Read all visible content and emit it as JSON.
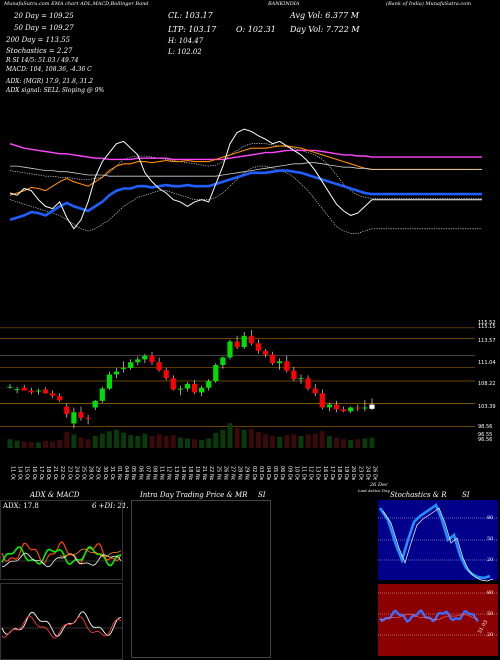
{
  "header": {
    "line1_left": "MunafaSutra.com  EMA chart ADL,MACD,Bollinger Band",
    "stock": "BANKINDIA",
    "company": "(Bank of India) MunafaSutra.com",
    "ema20": "20 Day = 109.25",
    "ema50": "50 Day = 109.27",
    "ema200": "200 Day = 113.55",
    "stochastics": "Stochastics = 2.27",
    "rsi_line": "R SI 14/5: 51.03 / 49.74",
    "macd": "MACD: 104, 108.36, -4.36 C",
    "cl": "CL: 103.17",
    "ltp": "LTP: 103.17",
    "open": "O: 102.31",
    "high": "H: 104.47",
    "low": "L: 102.02",
    "avg_vol": "Avg Vol: 6.377 M",
    "day_vol": "Day Vol: 7.722 M",
    "adx_line": "ADX: (MGR) 17.9, 21.8, 31.2",
    "adx_signal": "ADX signal: SELL Sloping @ 9%"
  },
  "price_levels": [
    "115.52",
    "115.15",
    "113.57",
    "111.04",
    "108.22",
    "103.39",
    "98.56",
    "96.55",
    "96.56"
  ],
  "dates": [
    "11 Oct",
    "14 Oct",
    "15 Oct",
    "16 Oct",
    "17 Oct",
    "18 Oct",
    "21 Oct",
    "22 Oct",
    "23 Oct",
    "24 Oct",
    "25 Oct",
    "28 Oct",
    "29 Oct",
    "30 Oct",
    "31 Oct",
    "01 Nov",
    "04 Nov",
    "05 Nov",
    "06 Nov",
    "07 Nov",
    "08 Nov",
    "11 Nov",
    "12 Nov",
    "13 Nov",
    "14 Nov",
    "18 Nov",
    "19 Nov",
    "21 Nov",
    "22 Nov",
    "25 Nov",
    "26 Nov",
    "27 Nov",
    "28 Nov",
    "29 Nov",
    "02 Dec",
    "03 Dec",
    "04 Dec",
    "05 Dec",
    "06 Dec",
    "09 Dec",
    "10 Dec",
    "11 Dec",
    "12 Dec",
    "13 Dec",
    "16 Dec",
    "17 Dec",
    "18 Dec",
    "19 Dec",
    "20 Dec",
    "23 Dec",
    "24 Dec",
    "26 Dec"
  ],
  "date_footer": "26 Dec",
  "date_footer2": "Last Active Day",
  "panels": {
    "adx_title": "ADX & MACD",
    "adx_value": "ADX: 17.8",
    "adx_extra": "6 +DI: 21.",
    "intraday_title": "Intra Day Trading Price & MR",
    "intraday_si": "SI",
    "stoch_title": "Stochastics & R",
    "stoch_si": "SI",
    "stoch_levels": [
      "80",
      "50",
      "20"
    ],
    "rsi_levels": [
      "80",
      "50",
      "20"
    ],
    "rsi_value": "51.03"
  },
  "colors": {
    "bull": "#00dd00",
    "bear": "#ff0000",
    "ema20": "#ffffff",
    "ema50": "#ff8c00",
    "ema200": "#ff44ff",
    "bb": "#1f5fff",
    "stoch_bg": "#00008b",
    "rsi_bg": "#8b0000"
  },
  "chart_data": {
    "type": "candlestick",
    "ylim": [
      94,
      122
    ],
    "ohlc": [
      [
        107,
        107.6,
        106.6,
        107
      ],
      [
        106.3,
        107,
        105.6,
        106.5
      ],
      [
        106.8,
        107.4,
        106.2,
        106.2
      ],
      [
        106.2,
        106.8,
        105.4,
        105.8
      ],
      [
        106,
        106.6,
        105.3,
        106.2
      ],
      [
        106.4,
        106.9,
        105.5,
        105.6
      ],
      [
        105.6,
        106.2,
        104.6,
        105.1
      ],
      [
        105,
        105.6,
        103.8,
        104.1
      ],
      [
        102.8,
        103.5,
        100.4,
        101.2
      ],
      [
        99.2,
        102.6,
        98.2,
        101.6
      ],
      [
        101.6,
        102.8,
        99.8,
        100.4
      ],
      [
        100.4,
        101,
        99,
        100.2
      ],
      [
        102.6,
        104.2,
        102,
        104
      ],
      [
        104,
        107,
        103.6,
        106.6
      ],
      [
        106.6,
        110.2,
        106.3,
        109.6
      ],
      [
        109.6,
        111,
        108.8,
        110.2
      ],
      [
        110.8,
        112.4,
        110,
        111
      ],
      [
        111,
        112.8,
        110.6,
        112.2
      ],
      [
        112.2,
        113.4,
        111.6,
        112.8
      ],
      [
        112.8,
        114,
        112,
        113.6
      ],
      [
        113.6,
        114.4,
        111.6,
        112.2
      ],
      [
        112.2,
        113.2,
        110.2,
        110.5
      ],
      [
        110.5,
        111,
        108.4,
        108.8
      ],
      [
        108.8,
        109.4,
        106.2,
        106.4
      ],
      [
        106.4,
        107.2,
        105.2,
        106.6
      ],
      [
        106.6,
        108,
        106,
        107.6
      ],
      [
        107.6,
        108.4,
        105.4,
        105.8
      ],
      [
        105.8,
        107.2,
        105,
        106.8
      ],
      [
        106.8,
        108.6,
        106.2,
        108.2
      ],
      [
        108.2,
        112,
        107.8,
        111.6
      ],
      [
        111.6,
        113.4,
        110.8,
        113.2
      ],
      [
        113.2,
        117,
        112.8,
        116.6
      ],
      [
        116.6,
        117.8,
        115,
        115.4
      ],
      [
        115.4,
        118.6,
        115,
        117.8
      ],
      [
        117.8,
        119,
        115.8,
        116.2
      ],
      [
        116.2,
        117,
        114,
        114.6
      ],
      [
        114.6,
        115,
        113.2,
        113.8
      ],
      [
        113.8,
        114.4,
        111.6,
        112
      ],
      [
        112,
        113,
        110.6,
        112.4
      ],
      [
        112.4,
        113.6,
        110,
        110.4
      ],
      [
        110.4,
        111.2,
        108.2,
        108.6
      ],
      [
        108.6,
        109.6,
        107.6,
        108.8
      ],
      [
        108.8,
        109.4,
        106.2,
        106.6
      ],
      [
        106.6,
        107.6,
        105,
        105.6
      ],
      [
        105.6,
        106.4,
        102.2,
        102.6
      ],
      [
        102.6,
        103.6,
        101.8,
        103.2
      ],
      [
        103.2,
        104,
        101.6,
        102.2
      ],
      [
        102.2,
        102.8,
        101.6,
        101.8
      ],
      [
        101.8,
        102.8,
        101.4,
        102.6
      ],
      [
        102.6,
        103.2,
        101.8,
        102.4
      ],
      [
        102.4,
        104.2,
        101.8,
        102.6
      ],
      [
        102.3,
        104.5,
        102,
        103.2
      ]
    ],
    "ema_panel": {
      "ema20": [
        0.3,
        0.34,
        0.4,
        0.5,
        0.42,
        0.33,
        0.44,
        0.55,
        0.62,
        0.48,
        0.38,
        0.3,
        0.42,
        0.56,
        0.68,
        0.8,
        0.82,
        0.72,
        0.8,
        0.7,
        0.64,
        0.68,
        0.72,
        0.66,
        0.6,
        0.62,
        0.58,
        0.56,
        0.52,
        0.62,
        0.72,
        0.82,
        0.84,
        0.86,
        0.88,
        0.86,
        0.82,
        0.8,
        0.84,
        0.8,
        0.74,
        0.62,
        0.56,
        0.52,
        0.5,
        0.42,
        0.45,
        0.35,
        0.3,
        0.32,
        0.38,
        0.46
      ],
      "ema50": [
        0.18,
        0.2,
        0.22,
        0.25,
        0.24,
        0.22,
        0.26,
        0.3,
        0.33,
        0.3,
        0.28,
        0.26,
        0.3,
        0.34,
        0.4,
        0.44,
        0.46,
        0.46,
        0.48,
        0.48,
        0.47,
        0.48,
        0.49,
        0.48,
        0.48,
        0.49,
        0.48,
        0.48,
        0.48,
        0.5,
        0.52,
        0.54,
        0.56,
        0.58,
        0.6,
        0.6,
        0.6,
        0.61,
        0.62,
        0.62,
        0.61,
        0.6,
        0.58,
        0.56,
        0.54,
        0.52,
        0.5,
        0.48,
        0.46,
        0.44,
        0.42,
        0.41
      ],
      "ema200": [
        0.86,
        0.84,
        0.82,
        0.81,
        0.8,
        0.79,
        0.78,
        0.77,
        0.77,
        0.76,
        0.75,
        0.74,
        0.73,
        0.73,
        0.72,
        0.72,
        0.72,
        0.72,
        0.73,
        0.73,
        0.73,
        0.73,
        0.73,
        0.72,
        0.72,
        0.72,
        0.72,
        0.72,
        0.72,
        0.72,
        0.72,
        0.73,
        0.74,
        0.75,
        0.76,
        0.77,
        0.78,
        0.78,
        0.79,
        0.8,
        0.8,
        0.8,
        0.8,
        0.8,
        0.79,
        0.78,
        0.77,
        0.76,
        0.76,
        0.75,
        0.75,
        0.74
      ],
      "ema100": [
        0.58,
        0.58,
        0.57,
        0.56,
        0.55,
        0.54,
        0.54,
        0.53,
        0.53,
        0.52,
        0.51,
        0.5,
        0.5,
        0.5,
        0.49,
        0.49,
        0.49,
        0.49,
        0.49,
        0.49,
        0.49,
        0.49,
        0.49,
        0.49,
        0.49,
        0.49,
        0.49,
        0.49,
        0.49,
        0.49,
        0.5,
        0.51,
        0.52,
        0.53,
        0.54,
        0.55,
        0.56,
        0.57,
        0.58,
        0.59,
        0.6,
        0.6,
        0.61,
        0.61,
        0.6,
        0.59,
        0.58,
        0.57,
        0.57,
        0.56,
        0.56,
        0.55
      ],
      "close": [
        0.42,
        0.4,
        0.46,
        0.44,
        0.36,
        0.3,
        0.28,
        0.34,
        0.2,
        0.1,
        0.18,
        0.34,
        0.56,
        0.7,
        0.78,
        0.86,
        0.88,
        0.82,
        0.76,
        0.6,
        0.52,
        0.46,
        0.42,
        0.36,
        0.34,
        0.3,
        0.34,
        0.36,
        0.34,
        0.5,
        0.66,
        0.86,
        0.96,
        0.99,
        0.97,
        0.93,
        0.9,
        0.86,
        0.88,
        0.84,
        0.8,
        0.76,
        0.7,
        0.62,
        0.52,
        0.42,
        0.32,
        0.26,
        0.22,
        0.24,
        0.3,
        0.36
      ],
      "bb_upper": [
        0.62,
        0.61,
        0.6,
        0.59,
        0.58,
        0.57,
        0.57,
        0.56,
        0.56,
        0.55,
        0.54,
        0.54,
        0.55,
        0.56,
        0.6,
        0.66,
        0.72,
        0.74,
        0.75,
        0.75,
        0.74,
        0.73,
        0.72,
        0.71,
        0.7,
        0.69,
        0.68,
        0.67,
        0.66,
        0.67,
        0.7,
        0.76,
        0.8,
        0.84,
        0.86,
        0.86,
        0.86,
        0.85,
        0.84,
        0.83,
        0.82,
        0.8,
        0.78,
        0.76,
        0.72,
        0.66,
        0.58,
        0.5,
        0.44,
        0.4,
        0.38,
        0.37
      ],
      "bb_lower": [
        0.36,
        0.34,
        0.32,
        0.3,
        0.28,
        0.26,
        0.24,
        0.22,
        0.18,
        0.14,
        0.1,
        0.08,
        0.1,
        0.14,
        0.18,
        0.24,
        0.3,
        0.34,
        0.38,
        0.4,
        0.42,
        0.44,
        0.44,
        0.42,
        0.4,
        0.38,
        0.36,
        0.36,
        0.36,
        0.38,
        0.42,
        0.48,
        0.54,
        0.6,
        0.64,
        0.66,
        0.66,
        0.64,
        0.62,
        0.6,
        0.56,
        0.5,
        0.44,
        0.36,
        0.28,
        0.2,
        0.12,
        0.08,
        0.06,
        0.06,
        0.08,
        0.1
      ]
    },
    "volume": [
      0.22,
      0.18,
      0.16,
      0.15,
      0.14,
      0.18,
      0.16,
      0.2,
      0.4,
      0.34,
      0.26,
      0.22,
      0.3,
      0.36,
      0.42,
      0.46,
      0.38,
      0.32,
      0.3,
      0.36,
      0.3,
      0.34,
      0.3,
      0.32,
      0.26,
      0.24,
      0.22,
      0.2,
      0.24,
      0.38,
      0.46,
      0.62,
      0.5,
      0.46,
      0.48,
      0.4,
      0.34,
      0.3,
      0.28,
      0.32,
      0.34,
      0.3,
      0.34,
      0.36,
      0.42,
      0.3,
      0.26,
      0.22,
      0.2,
      0.22,
      0.24,
      0.26
    ]
  }
}
